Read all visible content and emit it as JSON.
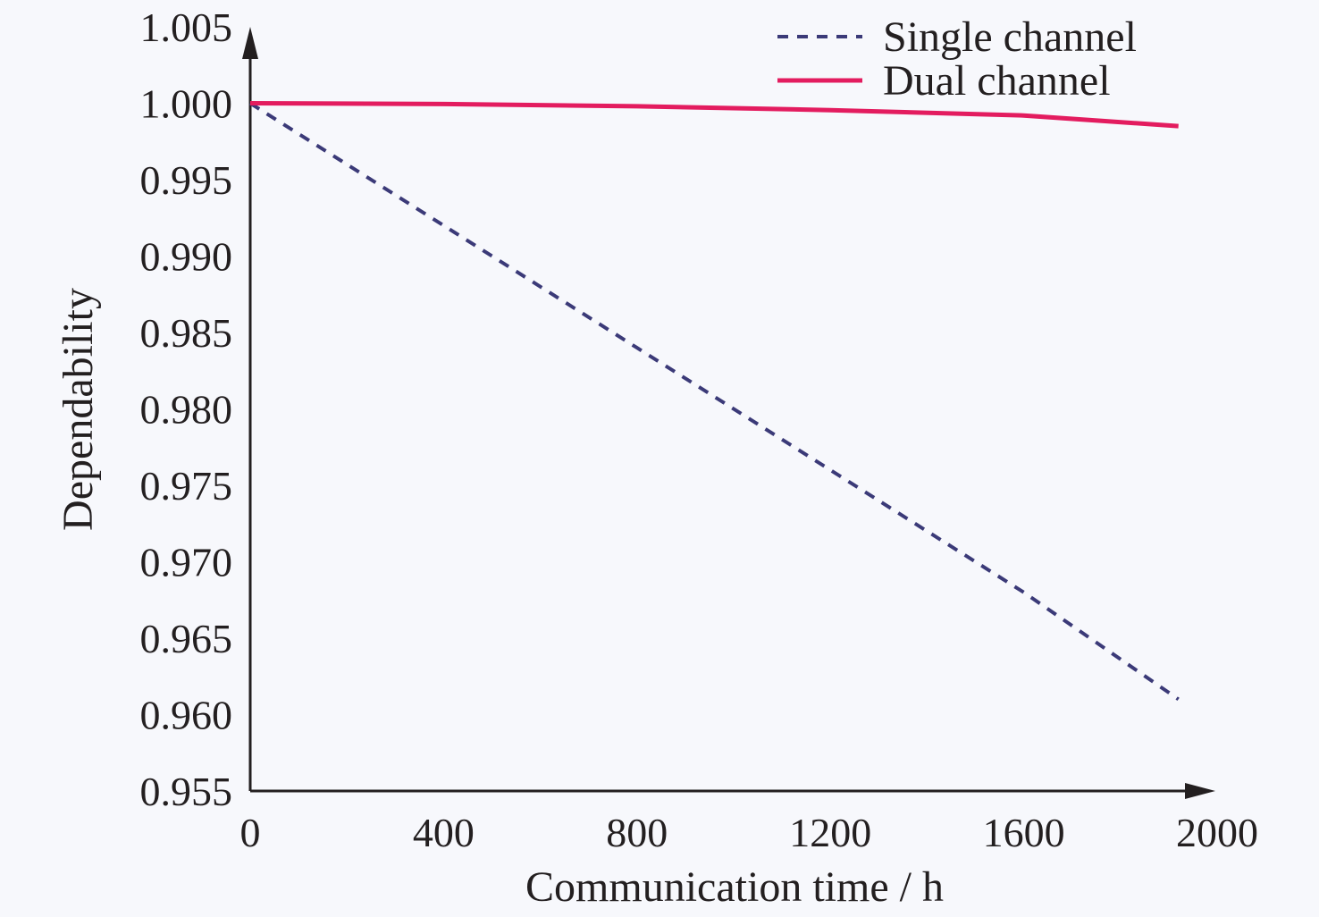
{
  "chart_data": {
    "type": "line",
    "title": "",
    "xlabel": "Communication time / h",
    "ylabel": "Dependability",
    "xlim": [
      0,
      2000
    ],
    "ylim": [
      0.955,
      1.005
    ],
    "x_ticks": [
      "0",
      "400",
      "800",
      "1200",
      "1600",
      "2000"
    ],
    "y_ticks": [
      "0.955",
      "0.960",
      "0.965",
      "0.970",
      "0.975",
      "0.980",
      "0.985",
      "0.990",
      "0.995",
      "1.000",
      "1.005"
    ],
    "grid": false,
    "legend_position": "top-right",
    "series": [
      {
        "name": "Single channel",
        "style": "dashed",
        "color": "#3b3a78",
        "x": [
          0,
          400,
          800,
          1200,
          1600,
          1920
        ],
        "y": [
          1.0,
          0.992,
          0.984,
          0.976,
          0.968,
          0.961
        ]
      },
      {
        "name": "Dual channel",
        "style": "solid",
        "color": "#e31c5f",
        "x": [
          0,
          400,
          800,
          1200,
          1600,
          1920
        ],
        "y": [
          1.0,
          0.99995,
          0.9998,
          0.99955,
          0.9992,
          0.9985
        ]
      }
    ]
  },
  "colors": {
    "axis": "#231f20",
    "background": "#f7f8fc"
  }
}
